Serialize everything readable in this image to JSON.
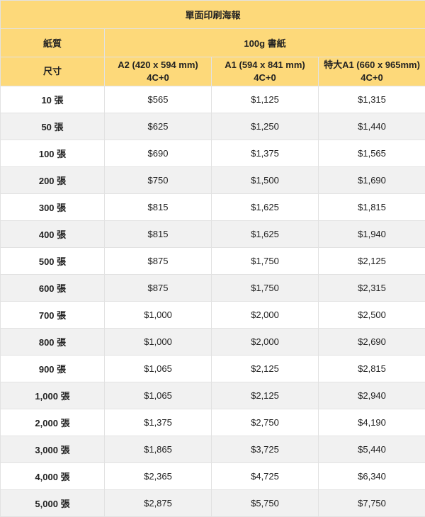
{
  "title": "單面印刷海報",
  "paper_label": "紙質",
  "paper_value": "100g 書紙",
  "size_label": "尺寸",
  "sizes": [
    {
      "name": "A2 (420 x 594 mm)",
      "spec": "4C+0"
    },
    {
      "name": "A1 (594 x 841 mm)",
      "spec": "4C+0"
    },
    {
      "name": "特大A1 (660 x 965mm)",
      "spec": "4C+0"
    }
  ],
  "rows": [
    {
      "qty": "10 張",
      "prices": [
        "$565",
        "$1,125",
        "$1,315"
      ]
    },
    {
      "qty": "50 張",
      "prices": [
        "$625",
        "$1,250",
        "$1,440"
      ]
    },
    {
      "qty": "100 張",
      "prices": [
        "$690",
        "$1,375",
        "$1,565"
      ]
    },
    {
      "qty": "200 張",
      "prices": [
        "$750",
        "$1,500",
        "$1,690"
      ]
    },
    {
      "qty": "300 張",
      "prices": [
        "$815",
        "$1,625",
        "$1,815"
      ]
    },
    {
      "qty": "400 張",
      "prices": [
        "$815",
        "$1,625",
        "$1,940"
      ]
    },
    {
      "qty": "500 張",
      "prices": [
        "$875",
        "$1,750",
        "$2,125"
      ]
    },
    {
      "qty": "600 張",
      "prices": [
        "$875",
        "$1,750",
        "$2,315"
      ]
    },
    {
      "qty": "700 張",
      "prices": [
        "$1,000",
        "$2,000",
        "$2,500"
      ]
    },
    {
      "qty": "800 張",
      "prices": [
        "$1,000",
        "$2,000",
        "$2,690"
      ]
    },
    {
      "qty": "900 張",
      "prices": [
        "$1,065",
        "$2,125",
        "$2,815"
      ]
    },
    {
      "qty": "1,000 張",
      "prices": [
        "$1,065",
        "$2,125",
        "$2,940"
      ]
    },
    {
      "qty": "2,000 張",
      "prices": [
        "$1,375",
        "$2,750",
        "$4,190"
      ]
    },
    {
      "qty": "3,000 張",
      "prices": [
        "$1,865",
        "$3,725",
        "$5,440"
      ]
    },
    {
      "qty": "4,000 張",
      "prices": [
        "$2,365",
        "$4,725",
        "$6,340"
      ]
    },
    {
      "qty": "5,000 張",
      "prices": [
        "$2,875",
        "$5,750",
        "$7,750"
      ]
    }
  ]
}
